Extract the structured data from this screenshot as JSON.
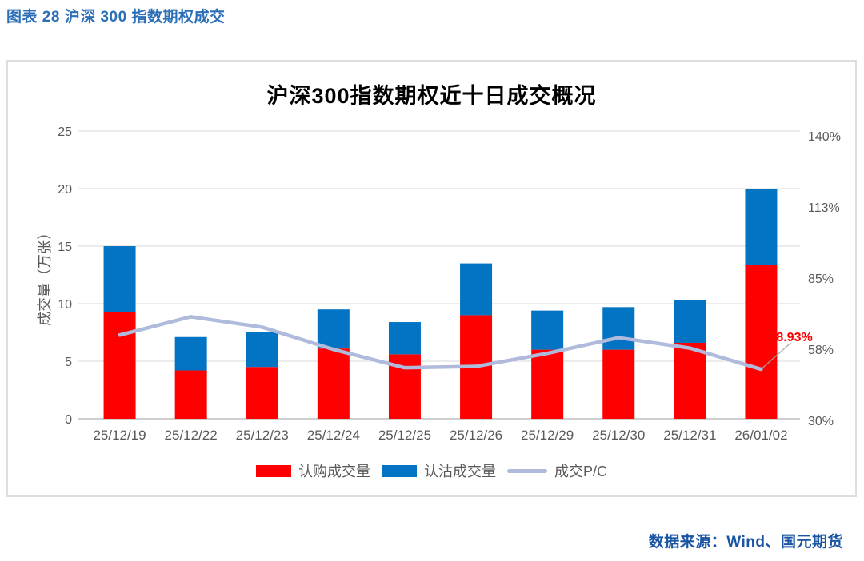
{
  "page": {
    "caption": "图表 28  沪深 300 指数期权成交",
    "source": "数据来源：Wind、国元期货"
  },
  "chart_data": {
    "type": "combo-stacked-bar-line",
    "title": "沪深300指数期权近十日成交概况",
    "categories": [
      "25/12/19",
      "25/12/22",
      "25/12/23",
      "25/12/24",
      "25/12/25",
      "25/12/26",
      "25/12/29",
      "25/12/30",
      "25/12/31",
      "26/01/02"
    ],
    "series": [
      {
        "name": "认购成交量",
        "type": "bar",
        "stack": "volume",
        "axis": "left",
        "color": "#FF0000",
        "values": [
          9.3,
          4.2,
          4.5,
          6.1,
          5.6,
          9.0,
          6.0,
          6.0,
          6.6,
          13.4
        ]
      },
      {
        "name": "认沽成交量",
        "type": "bar",
        "stack": "volume",
        "axis": "left",
        "color": "#0373C4",
        "values": [
          5.7,
          2.9,
          3.0,
          3.4,
          2.8,
          4.5,
          3.4,
          3.7,
          3.7,
          6.6
        ]
      },
      {
        "name": "成交P/C",
        "type": "line",
        "axis": "right",
        "color": "#AFBADC",
        "values": [
          62,
          69,
          65,
          56.5,
          49.5,
          50,
          55,
          61,
          57,
          48.93
        ]
      }
    ],
    "left_axis": {
      "label": "成交量（万张）",
      "ticks": [
        0,
        5,
        10,
        15,
        20,
        25
      ],
      "range": [
        0,
        25
      ]
    },
    "right_axis": {
      "ticks": [
        "30%",
        "58%",
        "85%",
        "113%",
        "140%"
      ],
      "range": [
        30,
        140
      ],
      "unit": "%"
    },
    "annotation": {
      "text": "48.93%",
      "series": "成交P/C",
      "point": "26/01/02",
      "color": "#FF0000"
    },
    "legend": {
      "position": "bottom",
      "items": [
        "认购成交量",
        "认沽成交量",
        "成交P/C"
      ]
    },
    "grid": {
      "horizontal": true,
      "color": "#D9D9D9",
      "axis_line_color": "#BFBFBF",
      "leader_line_color": "#A6A6A6"
    },
    "tick_text_color": "#595959"
  }
}
